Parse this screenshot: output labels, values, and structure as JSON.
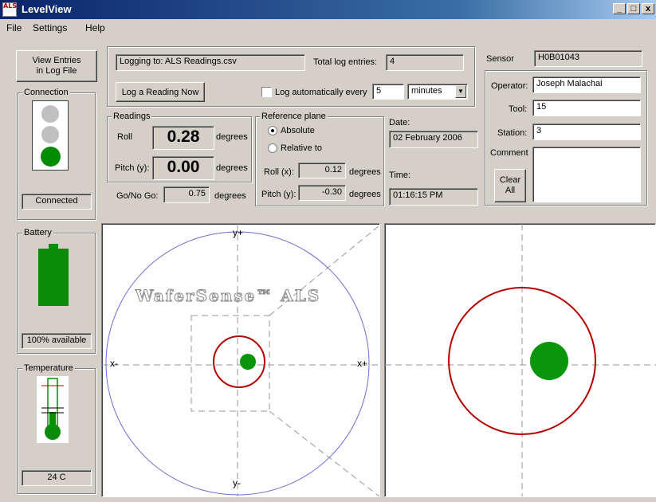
{
  "window": {
    "title": "LevelView",
    "app_icon_text": "ALS",
    "minimize": "_",
    "maximize": "□",
    "close": "x"
  },
  "menu": [
    "File",
    "Settings",
    "Help"
  ],
  "log": {
    "view_entries_label": "View Entries\nin Log File",
    "logging_to": "Logging to: ALS Readings.csv",
    "total_label": "Total log entries:",
    "total_value": "4",
    "log_now_label": "Log a Reading Now",
    "auto_label": "Log automatically every",
    "auto_checked": false,
    "interval_value": "5",
    "interval_unit": "minutes"
  },
  "connection": {
    "title": "Connection",
    "status": "Connected",
    "lights": [
      "#c0c0c0",
      "#c0c0c0",
      "#008c00"
    ]
  },
  "readings": {
    "title": "Readings",
    "roll_label": "Roll",
    "roll_value": "0.28",
    "pitch_label": "Pitch (y):",
    "pitch_value": "0.00",
    "unit": "degrees",
    "gonogo_label": "Go/No Go:",
    "gonogo_value": "0.75"
  },
  "reference": {
    "title": "Reference plane",
    "absolute_label": "Absolute",
    "relative_label": "Relative to",
    "selected": "absolute",
    "roll_label": "Roll (x):",
    "roll_value": "0.12",
    "pitch_label": "Pitch (y):",
    "pitch_value": "-0.30",
    "unit": "degrees"
  },
  "datetime": {
    "date_label": "Date:",
    "date_value": "02 February 2006",
    "time_label": "Time:",
    "time_value": "01:16:15 PM"
  },
  "sensor": {
    "sensor_label": "Sensor",
    "sensor_value": "H0B01043",
    "operator_label": "Operator:",
    "operator_value": "Joseph Malachai",
    "tool_label": "Tool:",
    "tool_value": "15",
    "station_label": "Station:",
    "station_value": "3",
    "comment_label": "Comment",
    "comment_value": "",
    "clear_label": "Clear\nAll"
  },
  "battery": {
    "title": "Battery",
    "status": "100% available",
    "level": 1.0,
    "color": "#0a8c0a"
  },
  "temperature": {
    "title": "Temperature",
    "value": "24 C"
  },
  "plot": {
    "watermark": "WaferSense™ ALS",
    "yplus": "y+",
    "yminus": "y-",
    "xplus": "x+",
    "xminus": "x-"
  },
  "colors": {
    "green": "#0a960a",
    "red": "#b40000",
    "wafer": "#6b6bd6"
  }
}
